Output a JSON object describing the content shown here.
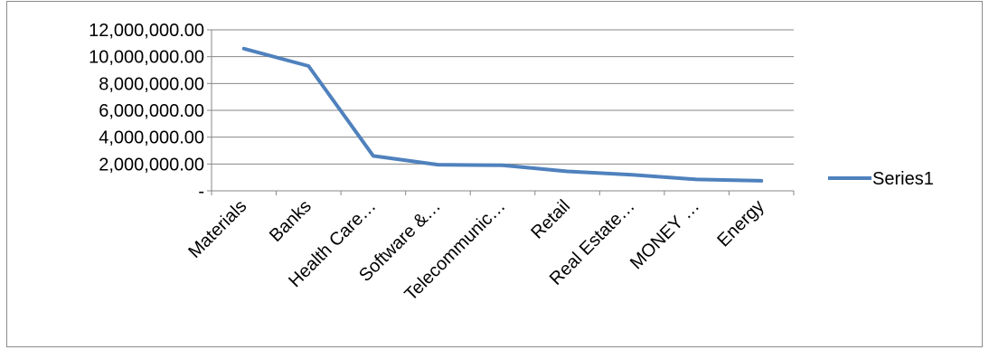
{
  "chart_data": {
    "type": "line",
    "title": "",
    "xlabel": "",
    "ylabel": "",
    "categories": [
      "Materials",
      "Banks",
      "Health Care…",
      "Software &…",
      "Telecommunic…",
      "Retail",
      "Real Estate…",
      "MONEY …",
      "Energy"
    ],
    "series": [
      {
        "name": "Series1",
        "color": "#4f81bd",
        "values": [
          10600000,
          9300000,
          2600000,
          1950000,
          1900000,
          1450000,
          1200000,
          850000,
          750000
        ]
      }
    ],
    "ylim": [
      0,
      12000000
    ],
    "y_ticks": [
      {
        "value": 0,
        "label": "-"
      },
      {
        "value": 2000000,
        "label": "2,000,000.00"
      },
      {
        "value": 4000000,
        "label": "4,000,000.00"
      },
      {
        "value": 6000000,
        "label": "6,000,000.00"
      },
      {
        "value": 8000000,
        "label": "8,000,000.00"
      },
      {
        "value": 10000000,
        "label": "10,000,000.00"
      },
      {
        "value": 12000000,
        "label": "12,000,000.00"
      }
    ],
    "grid": true,
    "legend": "right"
  }
}
